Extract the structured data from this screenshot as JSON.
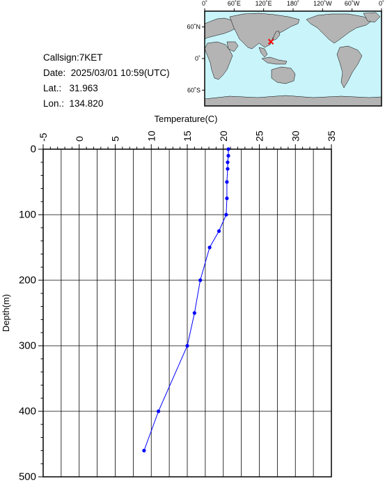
{
  "station": {
    "callsign_label": "Callsign:7KET",
    "date_label": "Date:  2025/03/01 10:59(UTC)",
    "lat_label": "Lat.:   31.963",
    "lon_label": "Lon.:  134.820"
  },
  "map": {
    "top_tick_labels": [
      "0˚",
      "60˚E",
      "120˚E",
      "180˚",
      "120˚W",
      "60˚W",
      "0˚"
    ],
    "left_tick_labels": [
      "60˚N",
      "0˚",
      "60˚S"
    ],
    "marker": {
      "lon": 134.82,
      "lat": 31.963,
      "color": "#ff0000"
    },
    "ocean_color": "#c8f4fa",
    "land_color": "#b4b4b4"
  },
  "chart_data": {
    "type": "line",
    "title": "",
    "xlabel": "Temperature(C)",
    "ylabel": "Depth(m)",
    "xlim": [
      -5,
      35
    ],
    "ylim": [
      500,
      0
    ],
    "x_ticks": [
      "-5",
      "0",
      "5",
      "10",
      "15",
      "20",
      "25",
      "30",
      "35"
    ],
    "y_ticks": [
      "0",
      "100",
      "200",
      "300",
      "400",
      "500"
    ],
    "grid": true,
    "series": [
      {
        "color": "#0000ff",
        "points": [
          [
            20.7,
            0
          ],
          [
            20.7,
            10
          ],
          [
            20.6,
            20
          ],
          [
            20.6,
            30
          ],
          [
            20.5,
            50
          ],
          [
            20.5,
            75
          ],
          [
            20.4,
            100
          ],
          [
            19.4,
            125
          ],
          [
            18.1,
            150
          ],
          [
            16.8,
            200
          ],
          [
            16.0,
            250
          ],
          [
            15.0,
            300
          ],
          [
            11.0,
            400
          ],
          [
            9.0,
            460
          ]
        ]
      }
    ]
  }
}
